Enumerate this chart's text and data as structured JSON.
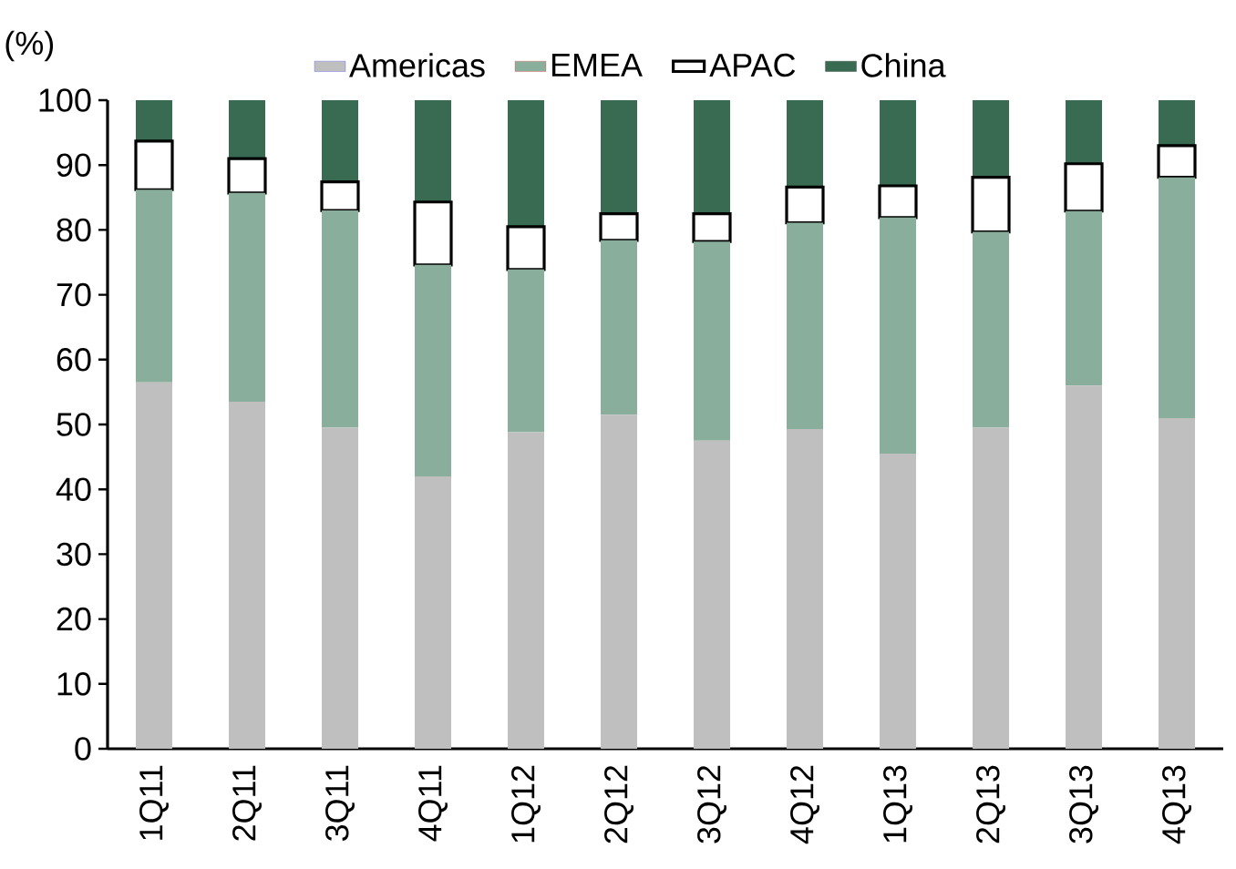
{
  "chart_data": {
    "type": "bar",
    "stacked": true,
    "ylabel": "(%)",
    "legend": "top",
    "categories": [
      "1Q11",
      "2Q11",
      "3Q11",
      "4Q11",
      "1Q12",
      "2Q12",
      "3Q12",
      "4Q12",
      "1Q13",
      "2Q13",
      "3Q13",
      "4Q13"
    ],
    "ylim": [
      0,
      100
    ],
    "yticks": [
      0,
      10,
      20,
      30,
      40,
      50,
      60,
      70,
      80,
      90,
      100
    ],
    "series": [
      {
        "name": "Americas",
        "color": "#bfbfbf",
        "values": [
          56.5,
          53.5,
          49.5,
          42.0,
          48.8,
          51.5,
          47.5,
          49.3,
          45.5,
          49.5,
          56.0,
          51.0
        ]
      },
      {
        "name": "EMEA",
        "color": "#8aae9c",
        "values": [
          29.7,
          32.2,
          33.5,
          32.6,
          25.1,
          26.9,
          30.7,
          31.8,
          36.4,
          30.2,
          26.9,
          37.1
        ]
      },
      {
        "name": "APAC",
        "color": "#ffffff",
        "values": [
          7.5,
          5.3,
          4.4,
          9.7,
          6.6,
          4.1,
          4.3,
          5.5,
          4.9,
          8.4,
          7.3,
          4.9
        ]
      },
      {
        "name": "China",
        "color": "#386b51",
        "values": [
          6.3,
          9.0,
          12.6,
          15.7,
          19.5,
          17.5,
          17.5,
          13.4,
          13.2,
          11.9,
          9.8,
          7.0
        ]
      }
    ]
  }
}
